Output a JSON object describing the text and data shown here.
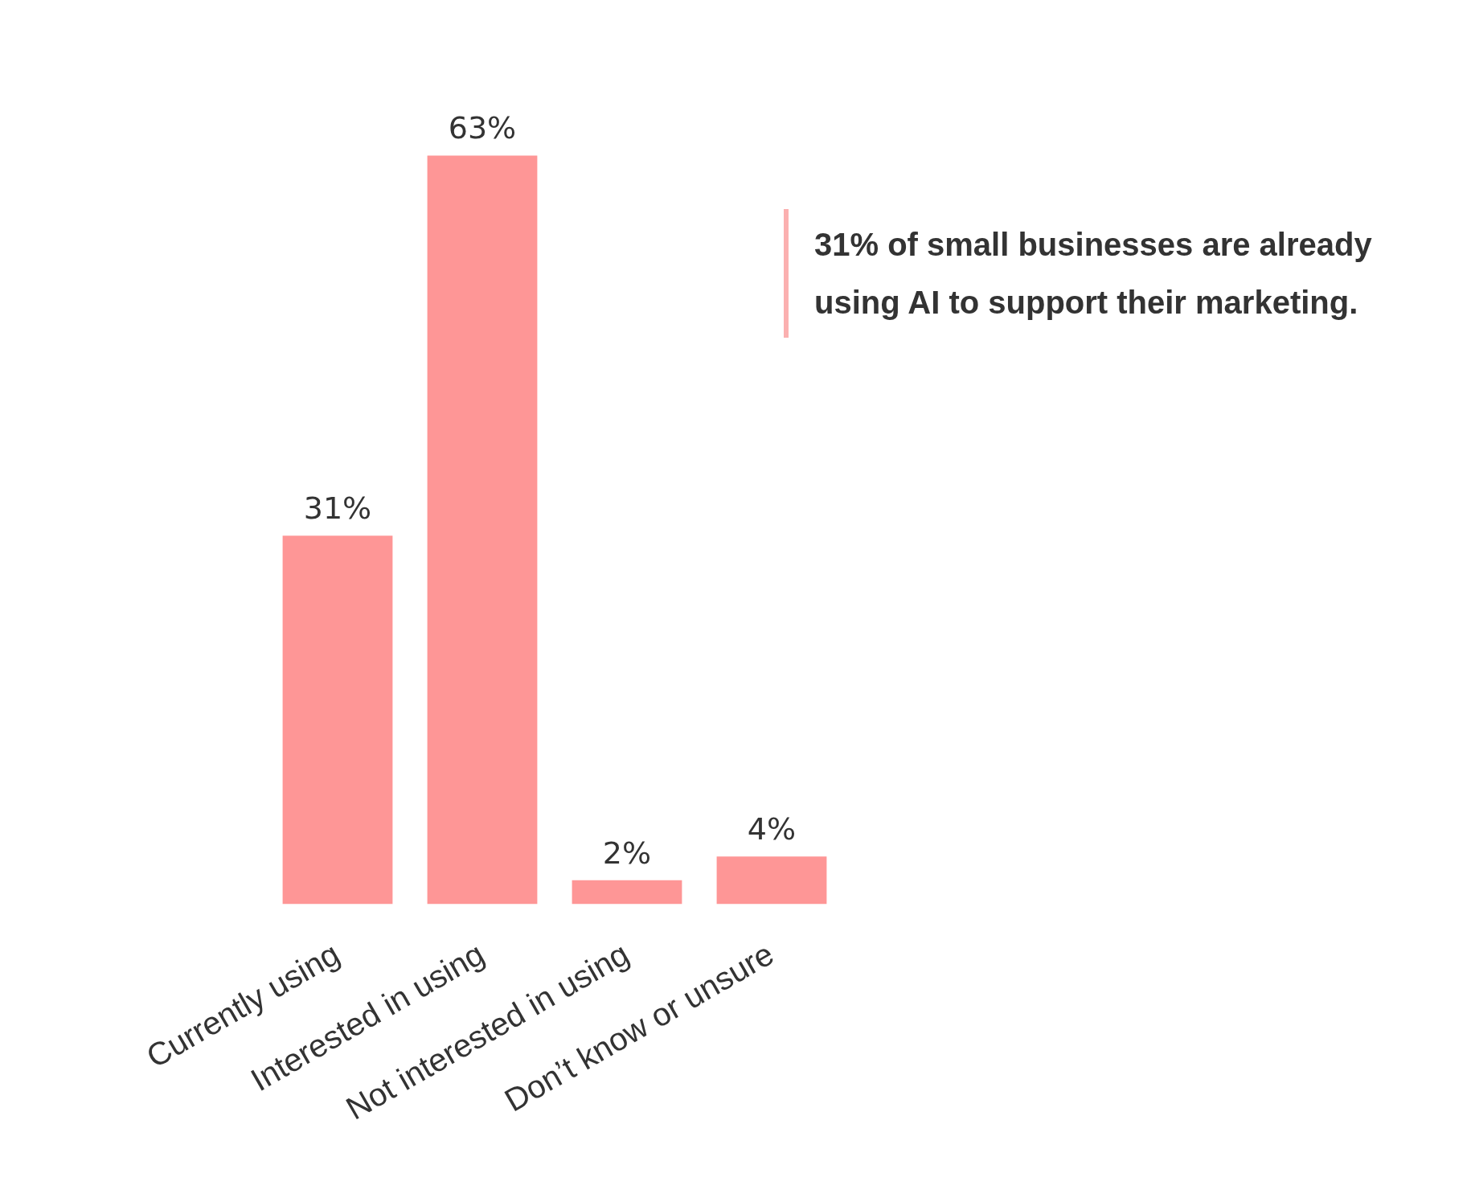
{
  "chart_data": {
    "type": "bar",
    "categories": [
      "Currently using",
      "Interested in using",
      "Not interested in using",
      "Don’t know or unsure"
    ],
    "values": [
      31,
      63,
      2,
      4
    ],
    "color": "#fe9696",
    "value_labels": [
      "31%",
      "63%",
      "2%",
      "4%"
    ],
    "annotations": [
      "31% of small businesses are already using AI to support their marketing."
    ],
    "grid": false,
    "legend": false
  }
}
